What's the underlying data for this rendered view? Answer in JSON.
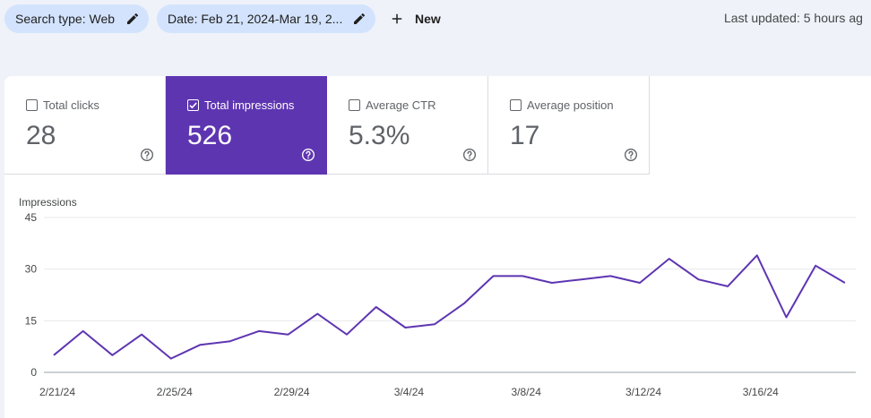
{
  "toolbar": {
    "chips": [
      {
        "label": "Search type: Web",
        "icon": "pencil-icon"
      },
      {
        "label": "Date: Feb 21, 2024-Mar 19, 2...",
        "icon": "pencil-icon"
      }
    ],
    "new_label": "New",
    "last_updated": "Last updated: 5 hours ag"
  },
  "metrics": [
    {
      "label": "Total clicks",
      "value": "28",
      "checked": false
    },
    {
      "label": "Total impressions",
      "value": "526",
      "checked": true
    },
    {
      "label": "Average CTR",
      "value": "5.3%",
      "checked": false
    },
    {
      "label": "Average position",
      "value": "17",
      "checked": false
    }
  ],
  "colors": {
    "accent": "#5e35b1",
    "chip_bg": "#d3e3fd",
    "page_bg": "#eff2f9"
  },
  "chart_data": {
    "type": "line",
    "ylabel": "Impressions",
    "ylim": [
      0,
      45
    ],
    "yticks": [
      "45",
      "30",
      "15",
      "0"
    ],
    "xticks": [
      "2/21/24",
      "2/25/24",
      "2/29/24",
      "3/4/24",
      "3/8/24",
      "3/12/24",
      "3/16/24"
    ],
    "grid": true,
    "series": [
      {
        "values": [
          5,
          12,
          5,
          11,
          4,
          8,
          9,
          12,
          11,
          17,
          11,
          19,
          13,
          14,
          20,
          28,
          28,
          26,
          27,
          28,
          26,
          33,
          27,
          25,
          34,
          16,
          31,
          26
        ]
      }
    ]
  }
}
